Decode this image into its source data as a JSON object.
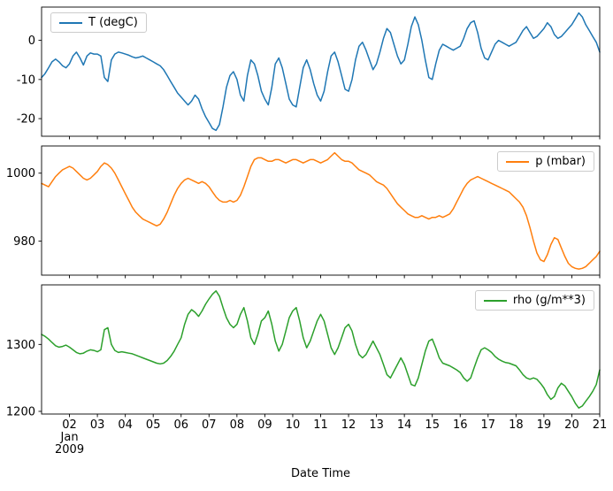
{
  "chart_data": {
    "type": "line",
    "xlabel": "Date Time",
    "xlim": [
      1,
      21
    ],
    "x_start": 1,
    "x_step": 0.125,
    "grid": false,
    "xticks": [
      {
        "value": 2,
        "label": "02",
        "sublabels": [
          "Jan",
          "2009"
        ]
      },
      {
        "value": 3,
        "label": "03"
      },
      {
        "value": 4,
        "label": "04"
      },
      {
        "value": 5,
        "label": "05"
      },
      {
        "value": 6,
        "label": "06"
      },
      {
        "value": 7,
        "label": "07"
      },
      {
        "value": 8,
        "label": "08"
      },
      {
        "value": 9,
        "label": "09"
      },
      {
        "value": 10,
        "label": "10"
      },
      {
        "value": 11,
        "label": "11"
      },
      {
        "value": 12,
        "label": "12"
      },
      {
        "value": 13,
        "label": "13"
      },
      {
        "value": 14,
        "label": "14"
      },
      {
        "value": 15,
        "label": "15"
      },
      {
        "value": 16,
        "label": "16"
      },
      {
        "value": 17,
        "label": "17"
      },
      {
        "value": 18,
        "label": "18"
      },
      {
        "value": 19,
        "label": "19"
      },
      {
        "value": 20,
        "label": "20"
      },
      {
        "value": 21,
        "label": "21"
      }
    ],
    "panels": [
      {
        "name": "temperature",
        "legend": "T (degC)",
        "legend_position": "upper-left",
        "color": "#1f77b4",
        "ylim": [
          -24.5,
          8.5
        ],
        "yticks": [
          {
            "value": 0,
            "label": "0"
          },
          {
            "value": -10,
            "label": "-10"
          },
          {
            "value": -20,
            "label": "-20"
          }
        ],
        "values": [
          -9.5,
          -8.5,
          -7,
          -5.5,
          -4.8,
          -5.5,
          -6.5,
          -7,
          -6,
          -4,
          -3,
          -4.5,
          -6.3,
          -4,
          -3.2,
          -3.5,
          -3.5,
          -4,
          -9.5,
          -10.5,
          -5,
          -3.5,
          -3,
          -3.2,
          -3.5,
          -3.8,
          -4.2,
          -4.5,
          -4.3,
          -4,
          -4.5,
          -5,
          -5.5,
          -6,
          -6.5,
          -7.5,
          -9,
          -10.5,
          -12,
          -13.5,
          -14.5,
          -15.5,
          -16.5,
          -15.5,
          -14,
          -15,
          -17.5,
          -19.5,
          -21,
          -22.5,
          -23,
          -21.5,
          -17,
          -12,
          -9,
          -8,
          -10,
          -14,
          -15.5,
          -9,
          -5,
          -6,
          -9,
          -13,
          -15,
          -16.5,
          -12,
          -6,
          -4.5,
          -7,
          -11,
          -15,
          -16.5,
          -17,
          -12,
          -7,
          -5,
          -7.5,
          -11,
          -14,
          -15.5,
          -13,
          -8,
          -4,
          -3,
          -5.5,
          -9,
          -12.5,
          -13,
          -10,
          -5,
          -1.5,
          -0.5,
          -2.5,
          -5,
          -7.5,
          -6,
          -3,
          0.5,
          3,
          2,
          -1,
          -4,
          -6,
          -5,
          -1,
          3.5,
          6,
          4,
          0,
          -5,
          -9.5,
          -10,
          -6,
          -2.5,
          -1,
          -1.5,
          -2,
          -2.5,
          -2,
          -1.5,
          0.5,
          3,
          4.5,
          5,
          2,
          -2,
          -4.5,
          -5,
          -3,
          -1,
          0,
          -0.5,
          -1,
          -1.5,
          -1,
          -0.5,
          1,
          2.5,
          3.5,
          2,
          0.5,
          1,
          2,
          3,
          4.5,
          3.5,
          1.5,
          0.5,
          1,
          2,
          3,
          4,
          5.5,
          7,
          6,
          4,
          2.5,
          1,
          -0.5,
          -3
        ]
      },
      {
        "name": "pressure",
        "legend": "p (mbar)",
        "legend_position": "upper-right",
        "color": "#ff7f0e",
        "ylim": [
          970,
          1008
        ],
        "yticks": [
          {
            "value": 1000,
            "label": "1000"
          },
          {
            "value": 980,
            "label": "980"
          }
        ],
        "values": [
          997,
          996.5,
          996,
          997.5,
          999,
          1000,
          1001,
          1001.5,
          1002,
          1001.5,
          1000.5,
          999.5,
          998.5,
          998,
          998.5,
          999.5,
          1000.5,
          1002,
          1003,
          1002.5,
          1001.5,
          1000,
          998,
          996,
          994,
          992,
          990,
          988.5,
          987.5,
          986.5,
          986,
          985.5,
          985,
          984.5,
          985,
          986.5,
          988.5,
          991,
          993.5,
          995.5,
          997,
          998,
          998.5,
          998,
          997.5,
          997,
          997.5,
          997,
          996,
          994.5,
          993,
          992,
          991.5,
          991.5,
          992,
          991.5,
          992,
          993.5,
          996,
          999,
          1002,
          1004,
          1004.5,
          1004.5,
          1004,
          1003.5,
          1003.5,
          1004,
          1004,
          1003.5,
          1003,
          1003.5,
          1004,
          1004,
          1003.5,
          1003,
          1003.5,
          1004,
          1004,
          1003.5,
          1003,
          1003.5,
          1004,
          1005,
          1006,
          1005,
          1004,
          1003.5,
          1003.5,
          1003,
          1002,
          1001,
          1000.5,
          1000,
          999.5,
          998.5,
          997.5,
          997,
          996.5,
          995.5,
          994,
          992.5,
          991,
          990,
          989,
          988,
          987.5,
          987,
          987,
          987.5,
          987,
          986.5,
          987,
          987,
          987.5,
          987,
          987.5,
          988,
          989.5,
          991.5,
          993.5,
          995.5,
          997,
          998,
          998.5,
          999,
          998.5,
          998,
          997.5,
          997,
          996.5,
          996,
          995.5,
          995,
          994.5,
          993.5,
          992.5,
          991.5,
          990,
          987.5,
          984,
          980,
          976.5,
          974.5,
          974,
          976,
          979,
          981,
          980.5,
          978,
          975.5,
          973.5,
          972.5,
          972,
          971.8,
          972,
          972.5,
          973.5,
          974.5,
          975.5,
          977
        ]
      },
      {
        "name": "density",
        "legend": "rho (g/m**3)",
        "legend_position": "upper-right",
        "color": "#2ca02c",
        "ylim": [
          1196,
          1389
        ],
        "yticks": [
          {
            "value": 1300,
            "label": "1300"
          },
          {
            "value": 1200,
            "label": "1200"
          }
        ],
        "values": [
          1315,
          1312,
          1308,
          1303,
          1298,
          1296,
          1297,
          1299,
          1296,
          1292,
          1288,
          1286,
          1287,
          1290,
          1292,
          1291,
          1289,
          1292,
          1322,
          1325,
          1300,
          1291,
          1288,
          1289,
          1288,
          1287,
          1286,
          1284,
          1282,
          1280,
          1278,
          1276,
          1274,
          1272,
          1271,
          1272,
          1276,
          1282,
          1290,
          1300,
          1310,
          1330,
          1345,
          1352,
          1348,
          1342,
          1350,
          1360,
          1368,
          1375,
          1380,
          1372,
          1355,
          1340,
          1330,
          1325,
          1330,
          1345,
          1355,
          1335,
          1310,
          1300,
          1315,
          1335,
          1340,
          1350,
          1330,
          1305,
          1290,
          1300,
          1320,
          1340,
          1350,
          1355,
          1335,
          1310,
          1295,
          1305,
          1320,
          1335,
          1345,
          1335,
          1315,
          1295,
          1285,
          1295,
          1310,
          1325,
          1330,
          1320,
          1300,
          1285,
          1280,
          1285,
          1295,
          1305,
          1295,
          1285,
          1270,
          1255,
          1250,
          1260,
          1270,
          1280,
          1270,
          1255,
          1240,
          1238,
          1250,
          1270,
          1290,
          1305,
          1308,
          1295,
          1280,
          1272,
          1270,
          1268,
          1265,
          1262,
          1258,
          1250,
          1245,
          1250,
          1265,
          1280,
          1292,
          1295,
          1292,
          1288,
          1282,
          1278,
          1275,
          1273,
          1272,
          1270,
          1268,
          1262,
          1255,
          1250,
          1248,
          1250,
          1248,
          1242,
          1235,
          1225,
          1218,
          1222,
          1235,
          1242,
          1238,
          1230,
          1222,
          1212,
          1205,
          1208,
          1215,
          1222,
          1230,
          1240,
          1262
        ]
      }
    ]
  }
}
